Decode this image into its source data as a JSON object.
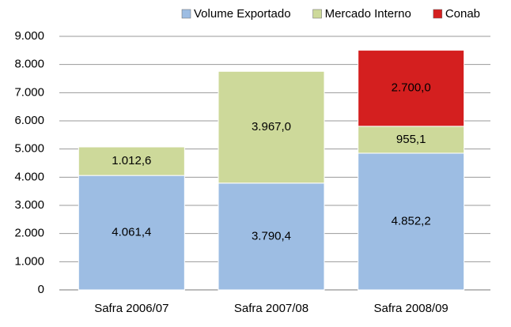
{
  "chart_data": {
    "type": "bar",
    "stacked": true,
    "categories": [
      "Safra 2006/07",
      "Safra 2007/08",
      "Safra 2008/09"
    ],
    "series": [
      {
        "name": "Volume Exportado",
        "color": "#9dbde3",
        "values": [
          4061.4,
          3790.4,
          4852.2
        ],
        "value_labels": [
          "4.061,4",
          "3.790,4",
          "4.852,2"
        ]
      },
      {
        "name": "Mercado Interno",
        "color": "#cdd99a",
        "values": [
          1012.6,
          3967.0,
          955.1
        ],
        "value_labels": [
          "1.012,6",
          "3.967,0",
          "955,1"
        ]
      },
      {
        "name": "Conab",
        "color": "#d41f1f",
        "values": [
          null,
          null,
          2700.0
        ],
        "value_labels": [
          null,
          null,
          "2.700,0"
        ]
      }
    ],
    "ylim": [
      0,
      9000
    ],
    "yticks": [
      0,
      {
        "value": 1000,
        "label": "1.000"
      },
      {
        "value": 2000,
        "label": "2.000"
      },
      {
        "value": 3000,
        "label": "3.000"
      },
      {
        "value": 4000,
        "label": "4.000"
      },
      {
        "value": 5000,
        "label": "5.000"
      },
      {
        "value": 6000,
        "label": "6.000"
      },
      {
        "value": 7000,
        "label": "7.000"
      },
      {
        "value": 8000,
        "label": "8.000"
      },
      {
        "value": 9000,
        "label": "9.000"
      }
    ],
    "grid": true,
    "legend": "top"
  }
}
